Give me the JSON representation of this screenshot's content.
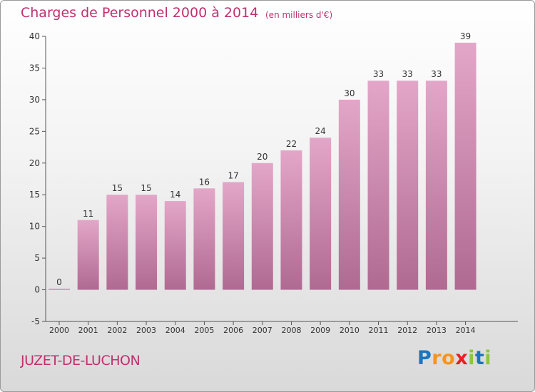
{
  "title": "Charges de Personnel 2000 à 2014",
  "subtitle": "(en milliers d'€)",
  "commune": "JUZET-DE-LUCHON",
  "logo": {
    "letters": [
      {
        "ch": "P",
        "color": "#1b75bc"
      },
      {
        "ch": "r",
        "color": "#f7941d"
      },
      {
        "ch": "o",
        "color": "#f7941d"
      },
      {
        "ch": "x",
        "color": "#ed1c24"
      },
      {
        "ch": "i",
        "color": "#8dc63f"
      },
      {
        "ch": "t",
        "color": "#1b75bc"
      },
      {
        "ch": "i",
        "color": "#8dc63f"
      }
    ]
  },
  "chart_data": {
    "type": "bar",
    "categories": [
      "2000",
      "2001",
      "2002",
      "2003",
      "2004",
      "2005",
      "2006",
      "2007",
      "2008",
      "2009",
      "2010",
      "2011",
      "2012",
      "2013",
      "2014"
    ],
    "values": [
      0,
      11,
      15,
      15,
      14,
      16,
      17,
      20,
      22,
      24,
      30,
      33,
      33,
      33,
      39
    ],
    "data_labels": [
      "0",
      "11",
      "15",
      "15",
      "14",
      "16",
      "17",
      "20",
      "22",
      "24",
      "30",
      "33",
      "33",
      "33",
      "39"
    ],
    "yticks": [
      -5,
      0,
      5,
      10,
      15,
      20,
      25,
      30,
      35,
      40
    ],
    "ylim": [
      -5,
      40
    ],
    "grid": false,
    "bar_color_top": "#e3a6c8",
    "bar_color_bottom": "#b06a92",
    "text_color": "#333333",
    "axis_color": "#555555"
  }
}
